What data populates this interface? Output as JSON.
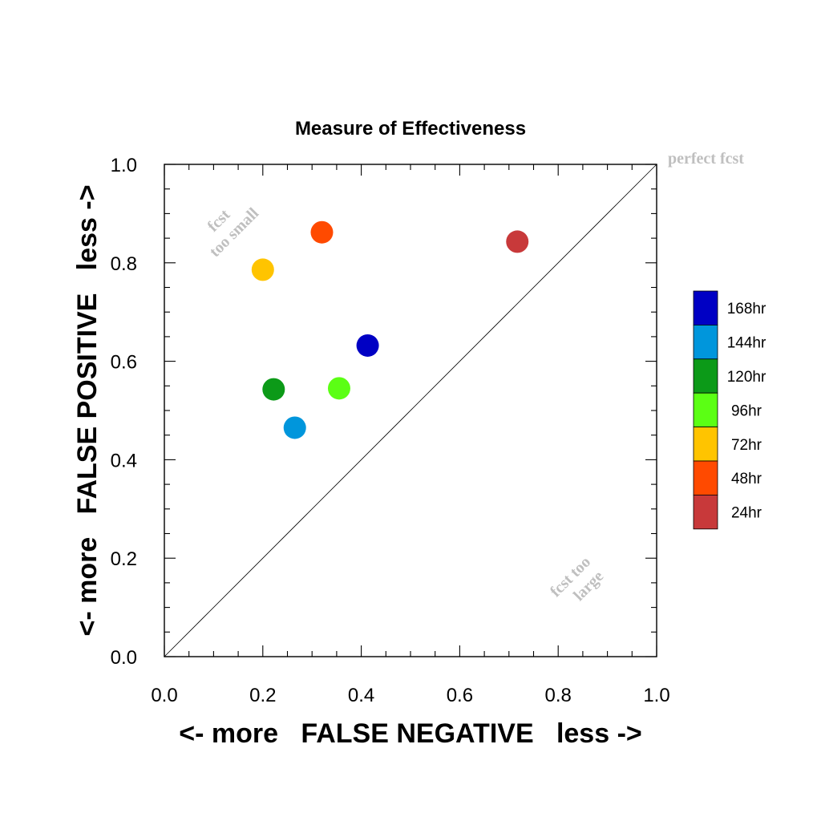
{
  "chart_data": {
    "type": "scatter",
    "title": "Measure of Effectiveness",
    "xlabel": "<- more   FALSE NEGATIVE   less ->",
    "ylabel": "<- more   FALSE POSITIVE   less ->",
    "xlim": [
      0.0,
      1.0
    ],
    "ylim": [
      0.0,
      1.0
    ],
    "x_tick_labels": [
      "0.0",
      "0.2",
      "0.4",
      "0.6",
      "0.8",
      "1.0"
    ],
    "y_tick_labels": [
      "0.0",
      "0.2",
      "0.4",
      "0.6",
      "0.8",
      "1.0"
    ],
    "grid": false,
    "legend_position": "right",
    "diagonal_reference_line": true,
    "annotations": {
      "perfect": "perfect fcst",
      "too_small_line1": "fcst",
      "too_small_line2": "too small",
      "too_large_line1": "fcst too",
      "too_large_line2": "large"
    },
    "series": [
      {
        "name": "24hr",
        "color": "#c8393a",
        "x": 0.717,
        "y": 0.843
      },
      {
        "name": "48hr",
        "color": "#ff4a00",
        "x": 0.32,
        "y": 0.862
      },
      {
        "name": "72hr",
        "color": "#ffc400",
        "x": 0.2,
        "y": 0.786
      },
      {
        "name": "96hr",
        "color": "#5bff14",
        "x": 0.355,
        "y": 0.545
      },
      {
        "name": "120hr",
        "color": "#0c9a18",
        "x": 0.222,
        "y": 0.543
      },
      {
        "name": "144hr",
        "color": "#0096dc",
        "x": 0.265,
        "y": 0.465
      },
      {
        "name": "168hr",
        "color": "#0000c4",
        "x": 0.413,
        "y": 0.632
      }
    ]
  }
}
